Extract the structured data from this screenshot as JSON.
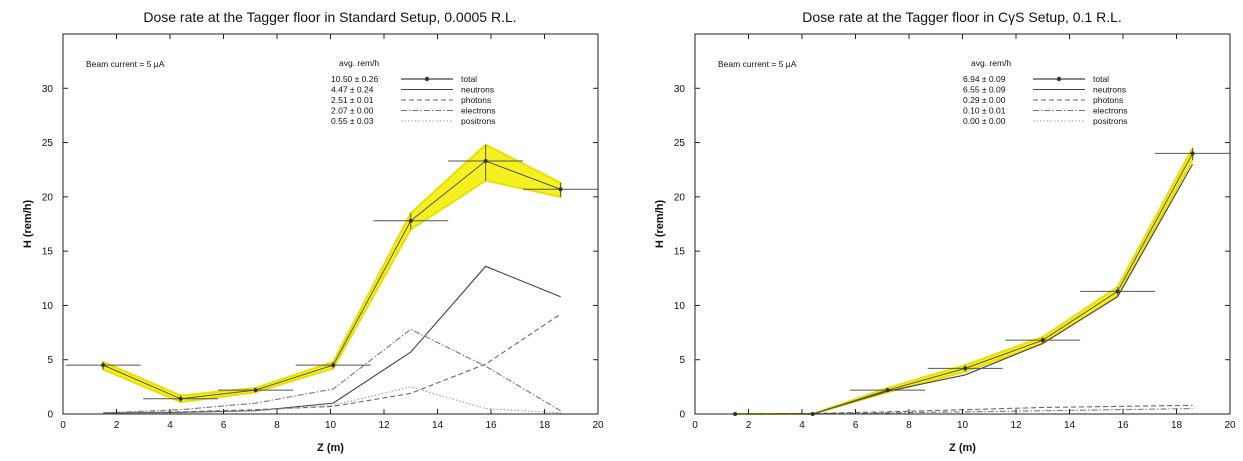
{
  "chart_data": [
    {
      "type": "line",
      "title": "Dose rate at the Tagger floor in Standard Setup, 0.0005 R.L.",
      "xlabel": "Z (m)",
      "ylabel": "H (rem/h)",
      "xlim": [
        0,
        20
      ],
      "ylim": [
        0,
        35
      ],
      "xticks": [
        0,
        2,
        4,
        6,
        8,
        10,
        12,
        14,
        16,
        18,
        20
      ],
      "yticks": [
        0,
        5,
        10,
        15,
        20,
        25,
        30
      ],
      "grid": false,
      "legend_position": "top-right",
      "legend_header": "avg. rem/h",
      "annotation": "Beam current = 5 μA",
      "total": {
        "x": [
          1.5,
          4.4,
          7.2,
          10.1,
          13.0,
          15.8,
          18.6
        ],
        "y": [
          4.5,
          1.4,
          2.2,
          4.5,
          17.8,
          23.3,
          20.7
        ],
        "y_low": [
          4.1,
          1.1,
          2.0,
          4.2,
          17.0,
          21.5,
          20.0
        ],
        "y_high": [
          4.8,
          1.7,
          2.4,
          4.8,
          18.5,
          24.8,
          21.3
        ],
        "x_half_width": 1.4,
        "label": "total",
        "avg": "10.50 ±  0.26"
      },
      "series": [
        {
          "name": "neutrons",
          "avg": "4.47 ±  0.24",
          "dash": "solid",
          "x": [
            1.5,
            4.4,
            7.2,
            10.1,
            13.0,
            15.8,
            18.6
          ],
          "y": [
            0.1,
            0.15,
            0.3,
            1.0,
            5.7,
            13.6,
            10.8
          ]
        },
        {
          "name": "photons",
          "avg": "2.51 ±  0.01",
          "dash": "dash",
          "x": [
            1.5,
            4.4,
            7.2,
            10.1,
            13.0,
            15.8,
            18.6
          ],
          "y": [
            0.1,
            0.2,
            0.4,
            0.7,
            1.9,
            4.6,
            9.2
          ]
        },
        {
          "name": "electrons",
          "avg": "2.07 ±  0.00",
          "dash": "dashdot",
          "x": [
            1.5,
            4.4,
            7.2,
            10.1,
            13.0,
            15.8,
            18.6
          ],
          "y": [
            0.1,
            0.4,
            1.0,
            2.3,
            7.8,
            4.4,
            0.3
          ]
        },
        {
          "name": "positrons",
          "avg": "0.55 ±  0.03",
          "dash": "dot",
          "x": [
            1.5,
            4.4,
            7.2,
            10.1,
            13.0,
            15.8,
            18.6
          ],
          "y": [
            0.05,
            0.1,
            0.3,
            0.8,
            2.5,
            0.5,
            0.1
          ]
        }
      ]
    },
    {
      "type": "line",
      "title": "Dose rate at the Tagger floor in CγS Setup, 0.1 R.L.",
      "xlabel": "Z (m)",
      "ylabel": "H (rem/h)",
      "xlim": [
        0,
        20
      ],
      "ylim": [
        0,
        35
      ],
      "xticks": [
        0,
        2,
        4,
        6,
        8,
        10,
        12,
        14,
        16,
        18,
        20
      ],
      "yticks": [
        0,
        5,
        10,
        15,
        20,
        25,
        30
      ],
      "grid": false,
      "legend_position": "top-right",
      "legend_header": "avg. rem/h",
      "annotation": "Beam current = 5 μA",
      "total": {
        "x": [
          1.5,
          4.4,
          7.2,
          10.1,
          13.0,
          15.8,
          18.6
        ],
        "y": [
          0.0,
          0.0,
          2.2,
          4.2,
          6.8,
          11.3,
          24.0
        ],
        "y_low": [
          0.0,
          0.0,
          2.0,
          3.9,
          6.5,
          10.9,
          23.4
        ],
        "y_high": [
          0.0,
          0.0,
          2.4,
          4.5,
          7.1,
          11.7,
          24.5
        ],
        "x_half_width": 1.4,
        "label": "total",
        "avg": "6.94 ±  0.09"
      },
      "series": [
        {
          "name": "neutrons",
          "avg": "6.55 ±  0.09",
          "dash": "solid",
          "x": [
            4.4,
            7.2,
            10.1,
            13.0,
            15.8,
            18.6
          ],
          "y": [
            0.0,
            2.1,
            3.6,
            6.5,
            10.8,
            23.0
          ]
        },
        {
          "name": "photons",
          "avg": "0.29 ±  0.00",
          "dash": "dash",
          "x": [
            1.5,
            4.4,
            7.2,
            10.1,
            13.0,
            15.8,
            18.6
          ],
          "y": [
            0.0,
            0.05,
            0.2,
            0.4,
            0.6,
            0.7,
            0.8
          ]
        },
        {
          "name": "electrons",
          "avg": "0.10 ±  0.01",
          "dash": "dashdot",
          "x": [
            1.5,
            4.4,
            7.2,
            10.1,
            13.0,
            15.8,
            18.6
          ],
          "y": [
            0.0,
            0.02,
            0.1,
            0.2,
            0.3,
            0.4,
            0.5
          ]
        },
        {
          "name": "positrons",
          "avg": "0.00 ±  0.00",
          "dash": "dot",
          "x": [
            1.5,
            4.4,
            7.2,
            10.1,
            13.0,
            15.8,
            18.6
          ],
          "y": [
            0.0,
            0.0,
            0.0,
            0.0,
            0.0,
            0.0,
            0.0
          ]
        }
      ]
    }
  ]
}
